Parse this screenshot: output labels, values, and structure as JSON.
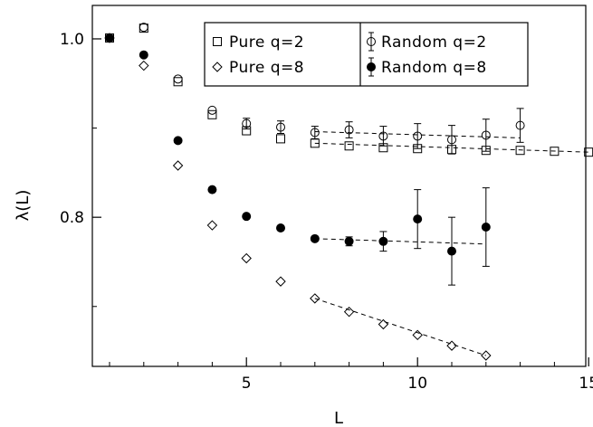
{
  "chart_data": {
    "type": "scatter",
    "title": "",
    "xlabel": "L",
    "ylabel": "λ(L)",
    "xlim": [
      0,
      15.2
    ],
    "ylim": [
      0.645,
      1.025
    ],
    "xticks": [
      5,
      10,
      15
    ],
    "xtick_labels": [
      "5",
      "10",
      "15"
    ],
    "yticks": [
      0.8,
      1.0
    ],
    "ytick_labels": [
      "0.8",
      "1.0"
    ],
    "grid": false,
    "legend": {
      "placement": "top-center",
      "columns": 2
    },
    "series": [
      {
        "name": "Pure q=2",
        "marker": "square-open",
        "x": [
          1,
          2,
          3,
          4,
          5,
          6,
          7,
          8,
          9,
          10,
          11,
          12,
          13,
          14,
          15
        ],
        "y": [
          1.001,
          1.012,
          0.952,
          0.915,
          0.897,
          0.888,
          0.883,
          0.88,
          0.878,
          0.877,
          0.876,
          0.875,
          0.875,
          0.874,
          0.873
        ],
        "fit": {
          "x": [
            7,
            15
          ],
          "y": [
            0.883,
            0.873
          ]
        }
      },
      {
        "name": "Pure q=8",
        "marker": "diamond-open",
        "x": [
          1,
          2,
          3,
          4,
          5,
          6,
          7,
          8,
          9,
          10,
          11,
          12
        ],
        "y": [
          1.001,
          0.97,
          0.858,
          0.791,
          0.754,
          0.728,
          0.709,
          0.694,
          0.68,
          0.668,
          0.656,
          0.645
        ],
        "fit": {
          "x": [
            7,
            12
          ],
          "y": [
            0.709,
            0.645
          ]
        }
      },
      {
        "name": "Random q=2",
        "marker": "circle-open",
        "x": [
          1,
          2,
          3,
          4,
          5,
          6,
          7,
          8,
          9,
          10,
          11,
          12,
          13
        ],
        "y": [
          1.001,
          1.013,
          0.955,
          0.92,
          0.905,
          0.901,
          0.895,
          0.898,
          0.891,
          0.891,
          0.887,
          0.892,
          0.903
        ],
        "err": [
          0,
          0,
          0,
          0,
          0.006,
          0.007,
          0.007,
          0.009,
          0.011,
          0.014,
          0.016,
          0.018,
          0.019
        ],
        "fit": {
          "x": [
            7,
            13
          ],
          "y": [
            0.896,
            0.889
          ]
        }
      },
      {
        "name": "Random q=8",
        "marker": "circle-filled",
        "x": [
          1,
          2,
          3,
          4,
          5,
          6,
          7,
          8,
          9,
          10,
          11,
          12
        ],
        "y": [
          1.001,
          0.982,
          0.886,
          0.831,
          0.801,
          0.788,
          0.776,
          0.773,
          0.773,
          0.798,
          0.762,
          0.789
        ],
        "err": [
          0,
          0,
          0,
          0,
          0,
          0,
          0,
          0.005,
          0.011,
          0.033,
          0.038,
          0.044
        ],
        "fit": {
          "x": [
            7,
            12
          ],
          "y": [
            0.776,
            0.77
          ]
        }
      }
    ]
  }
}
